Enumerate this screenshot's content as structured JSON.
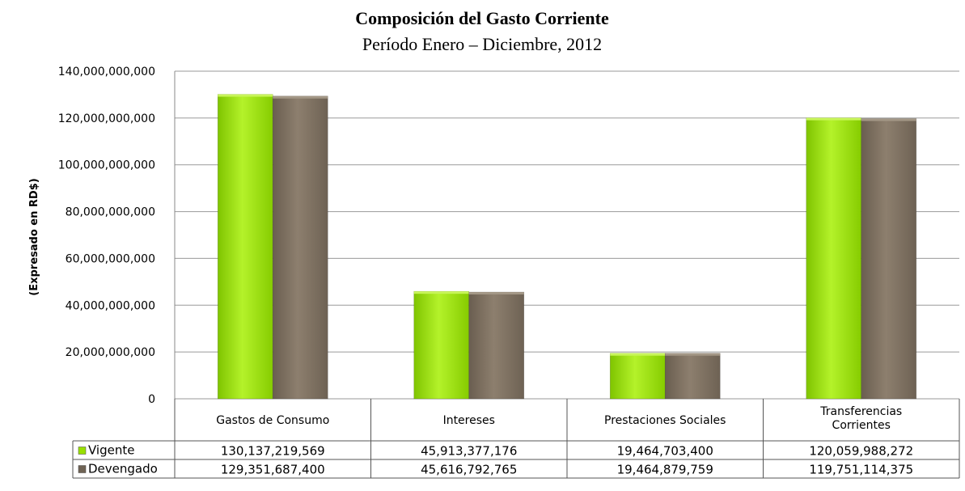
{
  "chart_data": {
    "type": "bar",
    "title": "Composición del Gasto Corriente",
    "subtitle": "Período Enero – Diciembre, 2012",
    "ylabel": "(Expresado en RD$)",
    "xlabel": "",
    "ylim": [
      0,
      140000000000
    ],
    "yticks": [
      "0",
      "20,000,000,000",
      "40,000,000,000",
      "60,000,000,000",
      "80,000,000,000",
      "100,000,000,000",
      "120,000,000,000",
      "140,000,000,000"
    ],
    "categories": [
      "Gastos de Consumo",
      "Intereses",
      "Prestaciones Sociales",
      "Transferencias Corrientes"
    ],
    "series": [
      {
        "name": "Vigente",
        "values": [
          130137219569,
          45913377176,
          19464703400,
          120059988272
        ],
        "labels": [
          "130,137,219,569",
          "45,913,377,176",
          "19,464,703,400",
          "120,059,988,272"
        ],
        "color": "#99e000"
      },
      {
        "name": "Devengado",
        "values": [
          129351687400,
          45616792765,
          19464879759,
          119751114375
        ],
        "labels": [
          "129,351,687,400",
          "45,616,792,765",
          "19,464,879,759",
          "119,751,114,375"
        ],
        "color": "#7a6c5c"
      }
    ],
    "grid": true,
    "legend": "data-table"
  }
}
